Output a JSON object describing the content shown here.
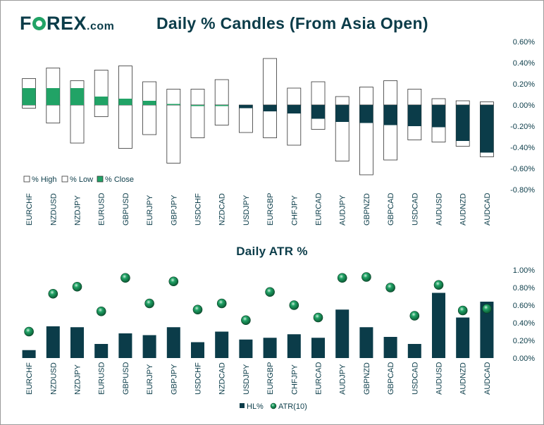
{
  "header": {
    "logo_main": "FOREX",
    "logo_suffix": ".com",
    "title_top": "Daily % Candles (From Asia Open)",
    "title_bottom": "Daily ATR %"
  },
  "colors": {
    "navy": "#0b3c49",
    "green": "#21a366",
    "white": "#ffffff",
    "outline": "#333333"
  },
  "chart_data": [
    {
      "type": "bar",
      "title": "Daily % Candles (From Asia Open)",
      "categories": [
        "EURCHF",
        "NZDUSD",
        "NZDJPY",
        "EURUSD",
        "GBPUSD",
        "EURJPY",
        "GBPJPY",
        "USDCHF",
        "NZDCAD",
        "USDJPY",
        "EURGBP",
        "CHFJPY",
        "EURCAD",
        "AUDJPY",
        "GBPNZD",
        "GBPCAD",
        "USDCAD",
        "AUDUSD",
        "AUDNZD",
        "AUDCAD"
      ],
      "series": [
        {
          "name": "% High",
          "values": [
            0.25,
            0.35,
            0.23,
            0.33,
            0.37,
            0.22,
            0.15,
            0.15,
            0.24,
            0.0,
            0.44,
            0.16,
            0.22,
            0.08,
            0.17,
            0.23,
            0.15,
            0.06,
            0.04,
            0.03
          ]
        },
        {
          "name": "% Low",
          "values": [
            -0.03,
            -0.17,
            -0.36,
            -0.11,
            -0.41,
            -0.28,
            -0.55,
            -0.31,
            -0.19,
            -0.26,
            -0.31,
            -0.38,
            -0.23,
            -0.53,
            -0.66,
            -0.52,
            -0.33,
            -0.35,
            -0.39,
            -0.49
          ]
        },
        {
          "name": "% Close",
          "values": [
            0.16,
            0.16,
            0.16,
            0.08,
            0.06,
            0.04,
            0.01,
            0.0,
            0.0,
            -0.03,
            -0.06,
            -0.08,
            -0.13,
            -0.16,
            -0.17,
            -0.19,
            -0.2,
            -0.21,
            -0.34,
            -0.45
          ]
        }
      ],
      "yticks": [
        "0.60%",
        "0.40%",
        "0.20%",
        "0.00%",
        "-0.20%",
        "-0.40%",
        "-0.60%",
        "-0.80%"
      ],
      "ylim": [
        -0.8,
        0.6
      ],
      "legend": [
        "% High",
        "% Low",
        "% Close"
      ],
      "legend_position": "bottom-left"
    },
    {
      "type": "bar",
      "title": "Daily ATR %",
      "categories": [
        "EURCHF",
        "NZDUSD",
        "NZDJPY",
        "EURUSD",
        "GBPUSD",
        "EURJPY",
        "GBPJPY",
        "USDCHF",
        "NZDCAD",
        "USDJPY",
        "EURGBP",
        "CHFJPY",
        "EURCAD",
        "AUDJPY",
        "GBPNZD",
        "GBPCAD",
        "USDCAD",
        "AUDUSD",
        "AUDNZD",
        "AUDCAD"
      ],
      "series": [
        {
          "name": "HL%",
          "values": [
            0.09,
            0.36,
            0.35,
            0.16,
            0.28,
            0.26,
            0.35,
            0.18,
            0.3,
            0.21,
            0.23,
            0.27,
            0.23,
            0.55,
            0.35,
            0.24,
            0.16,
            0.74,
            0.46,
            0.64
          ]
        },
        {
          "name": "ATR(10)",
          "values": [
            0.3,
            0.73,
            0.81,
            0.53,
            0.91,
            0.62,
            0.87,
            0.55,
            0.62,
            0.43,
            0.75,
            0.6,
            0.46,
            0.91,
            0.92,
            0.8,
            0.48,
            0.83,
            0.54,
            0.56
          ]
        }
      ],
      "yticks": [
        "1.00%",
        "0.80%",
        "0.60%",
        "0.40%",
        "0.20%",
        "0.00%"
      ],
      "ylim": [
        0,
        1.0
      ],
      "legend": [
        "HL%",
        "ATR(10)"
      ],
      "legend_position": "bottom"
    }
  ]
}
